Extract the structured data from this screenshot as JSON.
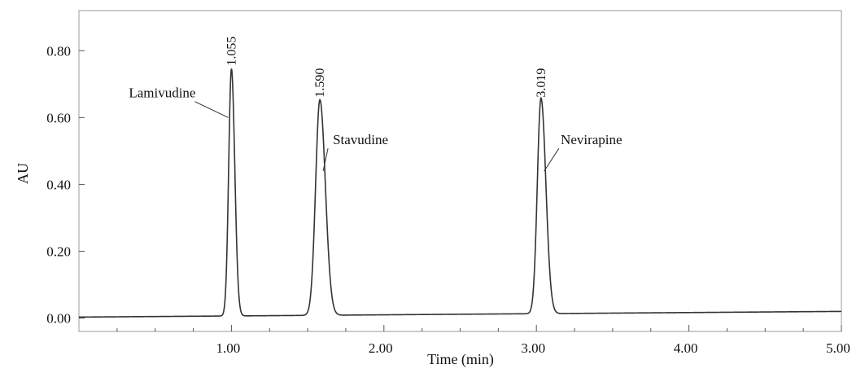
{
  "chart_data": {
    "type": "line",
    "title": "",
    "xlabel": "Time (min)",
    "ylabel": "AU",
    "xlim": [
      0.0,
      5.0
    ],
    "ylim": [
      -0.04,
      0.92
    ],
    "grid": false,
    "x_ticks": [
      1.0,
      2.0,
      3.0,
      4.0,
      5.0
    ],
    "x_tick_labels": [
      "1.00",
      "2.00",
      "3.00",
      "4.00",
      "5.00"
    ],
    "y_ticks": [
      0.0,
      0.2,
      0.4,
      0.6,
      0.8
    ],
    "y_tick_labels": [
      "0.00",
      "0.20",
      "0.40",
      "0.60",
      "0.80"
    ],
    "line_color": "#333333",
    "baseline": {
      "start_value": 0.003,
      "end_value": 0.02
    },
    "peaks": [
      {
        "compound": "Lamivudine",
        "retention_time": 1.055,
        "retention_label": "1.055",
        "apex_x": 1.0,
        "height": 0.74,
        "width_left": 0.018,
        "width_right": 0.022
      },
      {
        "compound": "Stavudine",
        "retention_time": 1.59,
        "retention_label": "1.590",
        "apex_x": 1.58,
        "height": 0.645,
        "width_left": 0.028,
        "width_right": 0.036
      },
      {
        "compound": "Nevirapine",
        "retention_time": 3.019,
        "retention_label": "3.019",
        "apex_x": 3.03,
        "height": 0.645,
        "width_left": 0.024,
        "width_right": 0.032
      }
    ]
  }
}
